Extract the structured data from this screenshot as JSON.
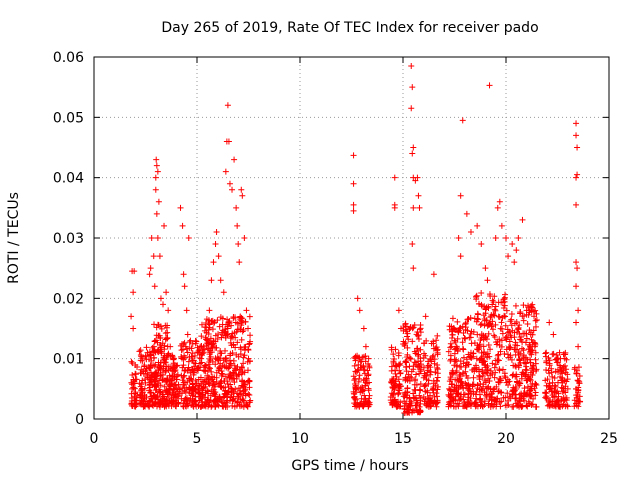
{
  "chart_data": {
    "type": "scatter",
    "title": "Day 265 of 2019, Rate Of TEC Index for receiver pado",
    "xlabel": "GPS time / hours",
    "ylabel": "ROTI / TECUs",
    "xlim": [
      0,
      25
    ],
    "ylim": [
      0,
      0.06
    ],
    "x_ticks": [
      0,
      5,
      10,
      15,
      20,
      25
    ],
    "x_tick_labels": [
      "0",
      "5",
      "10",
      "15",
      "20",
      "25"
    ],
    "y_ticks": [
      0,
      0.01,
      0.02,
      0.03,
      0.04,
      0.05,
      0.06
    ],
    "y_tick_labels": [
      "0",
      "0.01",
      "0.02",
      "0.03",
      "0.04",
      "0.05",
      "0.06"
    ],
    "grid": true,
    "marker": "+",
    "marker_color": "#ff0000",
    "series": [
      {
        "name": "ROTI",
        "points": [
          [
            1.85,
            0.0245
          ],
          [
            1.9,
            0.021
          ],
          [
            1.95,
            0.0245
          ],
          [
            1.8,
            0.017
          ],
          [
            1.9,
            0.015
          ],
          [
            2.0,
            0.0075
          ],
          [
            1.85,
            0.005
          ],
          [
            2.0,
            0.003
          ],
          [
            2.4,
            0.003
          ],
          [
            2.5,
            0.008
          ],
          [
            2.6,
            0.011
          ],
          [
            2.7,
            0.024
          ],
          [
            2.75,
            0.025
          ],
          [
            2.8,
            0.03
          ],
          [
            2.9,
            0.027
          ],
          [
            2.95,
            0.022
          ],
          [
            3.0,
            0.04
          ],
          [
            3.02,
            0.043
          ],
          [
            3.05,
            0.042
          ],
          [
            3.1,
            0.041
          ],
          [
            3.0,
            0.038
          ],
          [
            3.05,
            0.034
          ],
          [
            3.15,
            0.036
          ],
          [
            3.1,
            0.03
          ],
          [
            3.2,
            0.027
          ],
          [
            3.25,
            0.02
          ],
          [
            3.35,
            0.019
          ],
          [
            3.4,
            0.032
          ],
          [
            3.5,
            0.021
          ],
          [
            3.6,
            0.018
          ],
          [
            3.7,
            0.012
          ],
          [
            3.8,
            0.008
          ],
          [
            4.2,
            0.035
          ],
          [
            4.3,
            0.032
          ],
          [
            4.35,
            0.024
          ],
          [
            4.4,
            0.022
          ],
          [
            4.5,
            0.018
          ],
          [
            4.55,
            0.014
          ],
          [
            4.6,
            0.03
          ],
          [
            4.8,
            0.008
          ],
          [
            5.2,
            0.01
          ],
          [
            5.5,
            0.013
          ],
          [
            5.6,
            0.018
          ],
          [
            5.7,
            0.023
          ],
          [
            5.8,
            0.026
          ],
          [
            5.9,
            0.029
          ],
          [
            5.95,
            0.031
          ],
          [
            6.05,
            0.027
          ],
          [
            6.15,
            0.023
          ],
          [
            6.3,
            0.021
          ],
          [
            6.4,
            0.041
          ],
          [
            6.45,
            0.046
          ],
          [
            6.5,
            0.052
          ],
          [
            6.55,
            0.046
          ],
          [
            6.6,
            0.039
          ],
          [
            6.7,
            0.038
          ],
          [
            6.8,
            0.043
          ],
          [
            6.9,
            0.035
          ],
          [
            6.95,
            0.032
          ],
          [
            7.0,
            0.029
          ],
          [
            7.05,
            0.026
          ],
          [
            7.15,
            0.038
          ],
          [
            7.2,
            0.037
          ],
          [
            7.3,
            0.03
          ],
          [
            7.4,
            0.018
          ],
          [
            7.5,
            0.01
          ],
          [
            12.6,
            0.0437
          ],
          [
            12.6,
            0.039
          ],
          [
            12.6,
            0.0355
          ],
          [
            12.6,
            0.0345
          ],
          [
            12.8,
            0.02
          ],
          [
            12.9,
            0.018
          ],
          [
            13.1,
            0.015
          ],
          [
            13.2,
            0.012
          ],
          [
            14.6,
            0.04
          ],
          [
            14.6,
            0.0355
          ],
          [
            14.6,
            0.035
          ],
          [
            14.8,
            0.018
          ],
          [
            14.9,
            0.015
          ],
          [
            15.4,
            0.0585
          ],
          [
            15.45,
            0.055
          ],
          [
            15.4,
            0.0515
          ],
          [
            15.5,
            0.045
          ],
          [
            15.45,
            0.044
          ],
          [
            15.5,
            0.04
          ],
          [
            15.5,
            0.035
          ],
          [
            15.45,
            0.029
          ],
          [
            15.5,
            0.025
          ],
          [
            15.6,
            0.0395
          ],
          [
            15.7,
            0.04
          ],
          [
            15.75,
            0.037
          ],
          [
            15.8,
            0.035
          ],
          [
            16.1,
            0.017
          ],
          [
            16.5,
            0.024
          ],
          [
            17.8,
            0.037
          ],
          [
            17.9,
            0.0495
          ],
          [
            17.7,
            0.03
          ],
          [
            17.8,
            0.027
          ],
          [
            18.1,
            0.034
          ],
          [
            18.3,
            0.031
          ],
          [
            18.6,
            0.032
          ],
          [
            18.8,
            0.029
          ],
          [
            19.0,
            0.025
          ],
          [
            19.1,
            0.023
          ],
          [
            19.2,
            0.0553
          ],
          [
            19.5,
            0.03
          ],
          [
            19.6,
            0.035
          ],
          [
            19.7,
            0.036
          ],
          [
            19.8,
            0.032
          ],
          [
            20.0,
            0.03
          ],
          [
            20.1,
            0.027
          ],
          [
            20.3,
            0.029
          ],
          [
            20.4,
            0.026
          ],
          [
            20.5,
            0.028
          ],
          [
            20.6,
            0.03
          ],
          [
            20.8,
            0.033
          ],
          [
            21.0,
            0.018
          ],
          [
            21.2,
            0.014
          ],
          [
            21.4,
            0.012
          ],
          [
            22.1,
            0.016
          ],
          [
            22.3,
            0.014
          ],
          [
            22.6,
            0.011
          ],
          [
            22.8,
            0.008
          ],
          [
            23.0,
            0.005
          ],
          [
            23.4,
            0.049
          ],
          [
            23.4,
            0.047
          ],
          [
            23.45,
            0.045
          ],
          [
            23.4,
            0.04
          ],
          [
            23.45,
            0.0405
          ],
          [
            23.4,
            0.0355
          ],
          [
            23.4,
            0.026
          ],
          [
            23.45,
            0.025
          ],
          [
            23.4,
            0.022
          ],
          [
            23.5,
            0.018
          ],
          [
            23.4,
            0.016
          ],
          [
            23.5,
            0.012
          ],
          [
            23.45,
            0.008
          ],
          [
            23.4,
            0.005
          ],
          [
            23.5,
            0.003
          ]
        ],
        "dense_bands": [
          {
            "x_range": [
              1.8,
              2.1
            ],
            "y_range": [
              0.002,
              0.0095
            ],
            "count": 40
          },
          {
            "x_range": [
              2.2,
              3.0
            ],
            "y_range": [
              0.002,
              0.012
            ],
            "count": 130
          },
          {
            "x_range": [
              2.9,
              3.6
            ],
            "y_range": [
              0.002,
              0.016
            ],
            "count": 150
          },
          {
            "x_range": [
              3.6,
              4.2
            ],
            "y_range": [
              0.002,
              0.011
            ],
            "count": 90
          },
          {
            "x_range": [
              4.2,
              5.2
            ],
            "y_range": [
              0.002,
              0.013
            ],
            "count": 150
          },
          {
            "x_range": [
              5.2,
              6.2
            ],
            "y_range": [
              0.002,
              0.017
            ],
            "count": 190
          },
          {
            "x_range": [
              6.2,
              7.6
            ],
            "y_range": [
              0.002,
              0.017
            ],
            "count": 230
          },
          {
            "x_range": [
              12.6,
              13.4
            ],
            "y_range": [
              0.002,
              0.0105
            ],
            "count": 110
          },
          {
            "x_range": [
              14.4,
              14.9
            ],
            "y_range": [
              0.002,
              0.012
            ],
            "count": 80
          },
          {
            "x_range": [
              15.0,
              15.9
            ],
            "y_range": [
              0.001,
              0.016
            ],
            "count": 150
          },
          {
            "x_range": [
              16.0,
              16.7
            ],
            "y_range": [
              0.002,
              0.014
            ],
            "count": 100
          },
          {
            "x_range": [
              17.2,
              18.5
            ],
            "y_range": [
              0.002,
              0.017
            ],
            "count": 210
          },
          {
            "x_range": [
              18.5,
              20.0
            ],
            "y_range": [
              0.002,
              0.021
            ],
            "count": 260
          },
          {
            "x_range": [
              20.0,
              21.5
            ],
            "y_range": [
              0.002,
              0.019
            ],
            "count": 250
          },
          {
            "x_range": [
              21.9,
              23.0
            ],
            "y_range": [
              0.002,
              0.011
            ],
            "count": 130
          },
          {
            "x_range": [
              23.3,
              23.6
            ],
            "y_range": [
              0.002,
              0.01
            ],
            "count": 30
          }
        ]
      }
    ]
  }
}
